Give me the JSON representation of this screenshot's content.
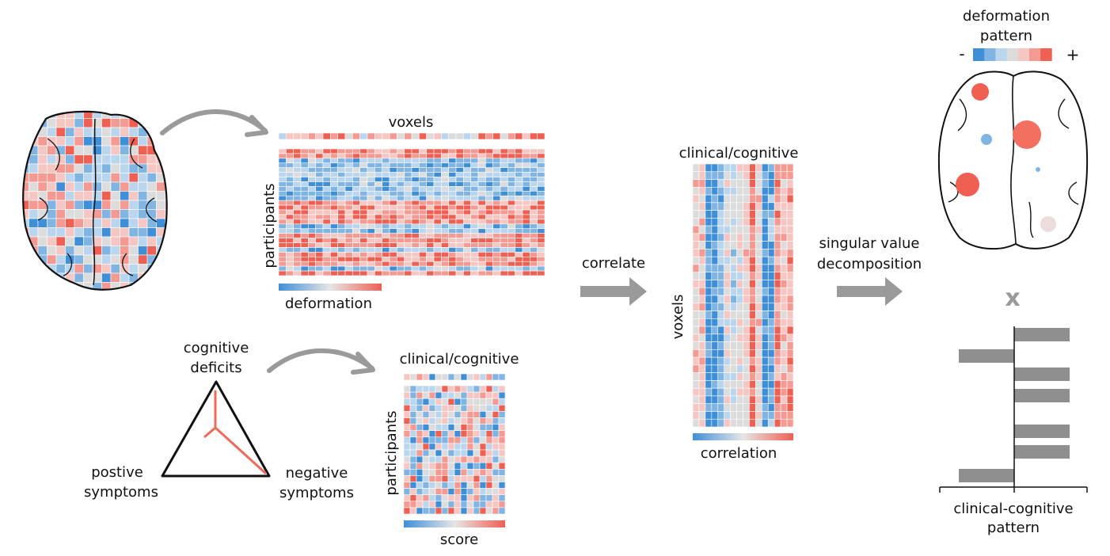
{
  "labels": {
    "voxels_top": "voxels",
    "participants_1": "participants",
    "deformation": "deformation",
    "cognitive_line1": "cognitive",
    "cognitive_line2": "deficits",
    "positive_line1": "postive",
    "positive_line2": "symptoms",
    "negative_line1": "negative",
    "negative_line2": "symptoms",
    "clinical_cognitive_small": "clinical/cognitive",
    "participants_2": "participants",
    "score": "score",
    "correlate": "correlate",
    "clinical_cognitive_corr": "clinical/cognitive",
    "voxels_side": "voxels",
    "correlation": "correlation",
    "svd_line1": "singular value",
    "svd_line2": "decomposition",
    "deformation_pattern_line1": "deformation",
    "deformation_pattern_line2": "pattern",
    "minus": "-",
    "plus": "+",
    "times": "x",
    "cc_pattern_line1": "clinical-cognitive",
    "cc_pattern_line2": "pattern"
  },
  "colors": {
    "neg_strong": "#3f8fd8",
    "neg_mid": "#7fb4e3",
    "neg_light": "#b9d6ee",
    "neutral": "#dcdcdc",
    "pos_light": "#f5c6c2",
    "pos_mid": "#f59a92",
    "pos_strong": "#ef5f52",
    "arrow_gray": "#9a9a9a",
    "bar_gray": "#8f8f8f"
  },
  "chart_data": {
    "type": "bar",
    "orientation": "horizontal",
    "values": [
      1,
      -1,
      1,
      1,
      1,
      1,
      -1
    ]
  }
}
